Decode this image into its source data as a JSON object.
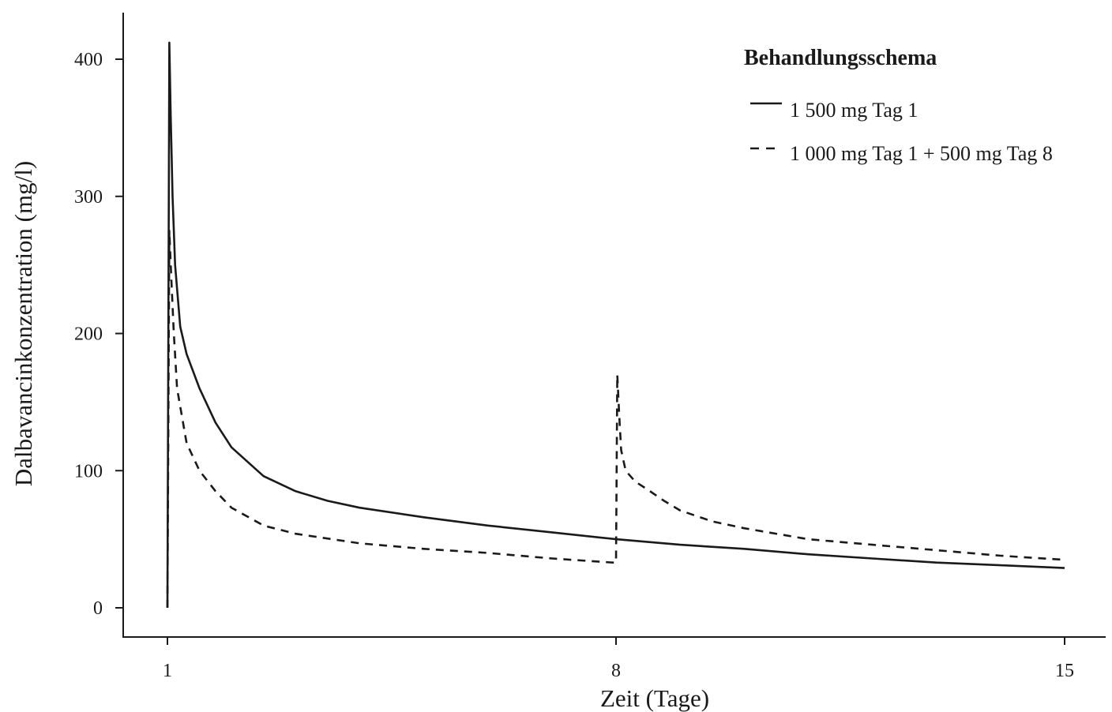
{
  "chart_data": {
    "type": "line",
    "xlabel": "Zeit (Tage)",
    "ylabel": "Dalbavancinkonzentration (mg/l)",
    "xlim": [
      1,
      15
    ],
    "ylim": [
      0,
      400
    ],
    "x_ticks": [
      1,
      8,
      15
    ],
    "y_ticks": [
      0,
      100,
      200,
      300,
      400
    ],
    "grid": false,
    "legend": {
      "title": "Behandlungsschema",
      "placement": "top-right"
    },
    "series": [
      {
        "name": "1 500 mg Tag 1",
        "style": "solid",
        "color": "#1a1a1a",
        "points": [
          [
            1.0,
            0
          ],
          [
            1.03,
            412
          ],
          [
            1.05,
            360
          ],
          [
            1.08,
            300
          ],
          [
            1.12,
            250
          ],
          [
            1.2,
            205
          ],
          [
            1.3,
            185
          ],
          [
            1.5,
            160
          ],
          [
            1.75,
            135
          ],
          [
            2.0,
            117
          ],
          [
            2.5,
            96
          ],
          [
            3.0,
            85
          ],
          [
            3.5,
            78
          ],
          [
            4.0,
            73
          ],
          [
            5.0,
            66
          ],
          [
            6.0,
            60
          ],
          [
            7.0,
            55
          ],
          [
            8.0,
            50
          ],
          [
            9.0,
            46
          ],
          [
            10.0,
            43
          ],
          [
            11.0,
            39
          ],
          [
            12.0,
            36
          ],
          [
            13.0,
            33
          ],
          [
            14.0,
            31
          ],
          [
            15.0,
            29
          ]
        ]
      },
      {
        "name": "1 000 mg Tag 1 + 500 mg Tag 8",
        "style": "dashed",
        "color": "#1a1a1a",
        "points": [
          [
            1.0,
            0
          ],
          [
            1.03,
            275
          ],
          [
            1.06,
            240
          ],
          [
            1.1,
            200
          ],
          [
            1.15,
            160
          ],
          [
            1.3,
            120
          ],
          [
            1.5,
            100
          ],
          [
            1.75,
            85
          ],
          [
            2.0,
            73
          ],
          [
            2.5,
            60
          ],
          [
            3.0,
            54
          ],
          [
            4.0,
            47
          ],
          [
            5.0,
            43
          ],
          [
            6.0,
            40
          ],
          [
            7.0,
            36
          ],
          [
            7.95,
            33
          ],
          [
            8.0,
            33
          ],
          [
            8.02,
            170
          ],
          [
            8.05,
            140
          ],
          [
            8.08,
            115
          ],
          [
            8.15,
            100
          ],
          [
            8.3,
            92
          ],
          [
            8.5,
            86
          ],
          [
            8.75,
            78
          ],
          [
            9.0,
            71
          ],
          [
            9.5,
            63
          ],
          [
            10.0,
            58
          ],
          [
            11.0,
            50
          ],
          [
            12.0,
            46
          ],
          [
            13.0,
            42
          ],
          [
            14.0,
            38
          ],
          [
            15.0,
            35
          ]
        ]
      }
    ]
  }
}
